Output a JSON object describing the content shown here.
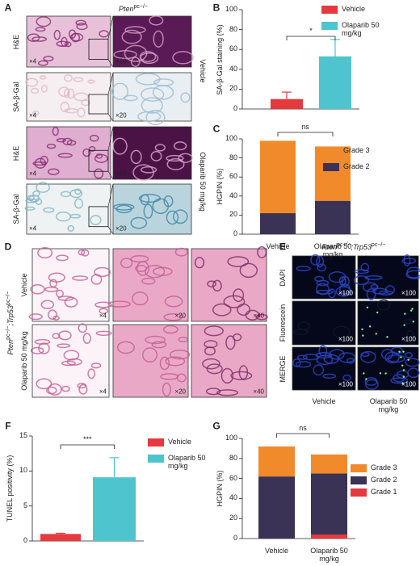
{
  "panels": {
    "A": {
      "label": "A",
      "title": [
        "Pten",
        "pc−/−"
      ],
      "rows": [
        "H&E",
        "SA-β-Gal",
        "H&E",
        "SA-β-Gal"
      ],
      "magnifications": [
        "×4",
        "×20"
      ],
      "groups": [
        "Vehicle",
        "Olaparib 50 mg/kg"
      ]
    },
    "D": {
      "label": "D",
      "title": [
        "Pten",
        "pc−/−",
        ";Trp53",
        "pc−/−"
      ],
      "rows": [
        "Vehicle",
        "Olaparib 50 mg/kg"
      ],
      "magnifications": [
        "×4",
        "×20",
        "×40"
      ]
    },
    "E": {
      "label": "E",
      "title": [
        "Pten",
        "pc−/−",
        ";Trp53",
        "pc−/−"
      ],
      "rows": [
        "DAPI",
        "Fluorescein",
        "MERGE"
      ],
      "magnification": "×100",
      "columns": [
        "Vehicle",
        "Olaparib 50 mg/kg"
      ]
    }
  },
  "chart_data": [
    {
      "label": "B",
      "type": "bar",
      "ylabel": "SA-β-Gal staining (%)",
      "ylim": [
        0,
        100
      ],
      "yticks": [
        0,
        20,
        40,
        60,
        80,
        100
      ],
      "annotation": "*",
      "series": [
        {
          "name": "Vehicle",
          "color": "#e5393e",
          "values": [
            10
          ],
          "errors": [
            7
          ]
        },
        {
          "name": "Olaparib 50 mg/kg",
          "color": "#4ec4cf",
          "values": [
            53
          ],
          "errors": [
            17
          ]
        }
      ]
    },
    {
      "label": "C",
      "type": "stacked_bar",
      "ylabel": "HGPIN (%)",
      "ylim": [
        0,
        100
      ],
      "yticks": [
        0,
        20,
        40,
        60,
        80,
        100
      ],
      "annotation": "ns",
      "categories": [
        "Vehicle",
        "Olaparib 50 mg/kg"
      ],
      "series": [
        {
          "name": "Grade 2",
          "color": "#3b3355",
          "values": [
            22,
            35
          ]
        },
        {
          "name": "Grade 3",
          "color": "#f18a2b",
          "values": [
            76,
            57
          ]
        }
      ]
    },
    {
      "label": "F",
      "type": "bar",
      "ylabel": "TUNEL positivity (%)",
      "ylim": [
        0,
        15
      ],
      "yticks": [
        0,
        5,
        10,
        15
      ],
      "annotation": "***",
      "series": [
        {
          "name": "Vehicle",
          "color": "#e5393e",
          "values": [
            1
          ],
          "errors": [
            0.1
          ]
        },
        {
          "name": "Olaparib 50 mg/kg",
          "color": "#4ec4cf",
          "values": [
            9.1
          ],
          "errors": [
            2.8
          ]
        }
      ]
    },
    {
      "label": "G",
      "type": "stacked_bar",
      "ylabel": "HGPIN (%)",
      "ylim": [
        0,
        100
      ],
      "yticks": [
        0,
        20,
        40,
        60,
        80,
        100
      ],
      "annotation": "ns",
      "categories": [
        "Vehicle",
        "Olaparib 50 mg/kg"
      ],
      "series": [
        {
          "name": "Grade 1",
          "color": "#e5393e",
          "values": [
            0,
            4
          ]
        },
        {
          "name": "Grade 2",
          "color": "#3b3355",
          "values": [
            62,
            61
          ]
        },
        {
          "name": "Grade 3",
          "color": "#f18a2b",
          "values": [
            30,
            19
          ]
        }
      ]
    }
  ]
}
